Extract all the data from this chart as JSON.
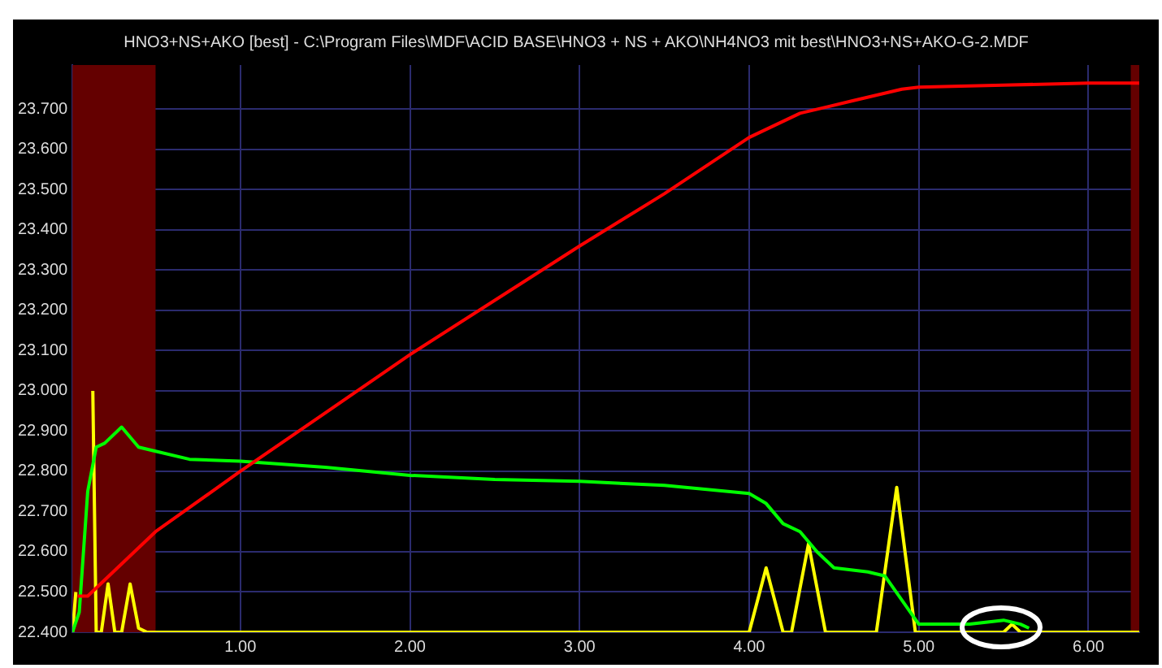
{
  "chart_data": {
    "type": "line",
    "title": "HNO3+NS+AKO [best] - C:\\Program Files\\MDF\\ACID BASE\\HNO3 + NS + AKO\\NH4NO3 mit best\\HNO3+NS+AKO-G-2.MDF",
    "xlim": [
      0.01,
      6.3
    ],
    "ylim": [
      22.4,
      23.81
    ],
    "xticks": [
      {
        "value": 1,
        "label": "1.00"
      },
      {
        "value": 2,
        "label": "2.00"
      },
      {
        "value": 3,
        "label": "3.00"
      },
      {
        "value": 4,
        "label": "4.00"
      },
      {
        "value": 5,
        "label": "5.00"
      },
      {
        "value": 6,
        "label": "6.00"
      }
    ],
    "yticks": [
      {
        "value": 22.4,
        "label": "22.400"
      },
      {
        "value": 22.5,
        "label": "22.500"
      },
      {
        "value": 22.6,
        "label": "22.600"
      },
      {
        "value": 22.7,
        "label": "22.700"
      },
      {
        "value": 22.8,
        "label": "22.800"
      },
      {
        "value": 22.9,
        "label": "22.900"
      },
      {
        "value": 23.0,
        "label": "23.000"
      },
      {
        "value": 23.1,
        "label": "23.100"
      },
      {
        "value": 23.2,
        "label": "23.200"
      },
      {
        "value": 23.3,
        "label": "23.300"
      },
      {
        "value": 23.4,
        "label": "23.400"
      },
      {
        "value": 23.5,
        "label": "23.500"
      },
      {
        "value": 23.6,
        "label": "23.600"
      },
      {
        "value": 23.7,
        "label": "23.700"
      }
    ],
    "grid": true,
    "legend": false,
    "marker": "none",
    "line_style": "solid",
    "bands": [
      {
        "axis": "x",
        "from": 0.01,
        "to": 0.5,
        "color": "#640000"
      },
      {
        "axis": "x",
        "from": 6.25,
        "to": 6.3,
        "color": "#640000"
      }
    ],
    "series": [
      {
        "color": "#ff0000",
        "x": [
          0.04,
          0.1,
          0.5,
          1,
          2,
          3,
          3.5,
          4,
          4.3,
          4.6,
          4.9,
          5,
          5.5,
          6,
          6.3
        ],
        "values": [
          22.49,
          22.49,
          22.65,
          22.8,
          23.09,
          23.36,
          23.49,
          23.63,
          23.69,
          23.72,
          23.75,
          23.755,
          23.76,
          23.765,
          23.765
        ]
      },
      {
        "color": "#00ff00",
        "x": [
          0.01,
          0.05,
          0.1,
          0.15,
          0.2,
          0.3,
          0.4,
          0.5,
          0.7,
          1,
          1.5,
          2,
          2.5,
          3,
          3.5,
          4,
          4.1,
          4.2,
          4.3,
          4.4,
          4.5,
          4.7,
          4.8,
          4.9,
          5,
          5.3,
          5.5,
          5.6,
          5.65
        ],
        "values": [
          22.4,
          22.45,
          22.75,
          22.86,
          22.87,
          22.91,
          22.86,
          22.85,
          22.83,
          22.825,
          22.81,
          22.79,
          22.78,
          22.775,
          22.765,
          22.745,
          22.72,
          22.67,
          22.65,
          22.6,
          22.56,
          22.55,
          22.54,
          22.48,
          22.42,
          22.42,
          22.43,
          22.42,
          22.41
        ]
      },
      {
        "color": "#ffff00",
        "x": [
          0.01,
          0.03,
          0.06,
          0.08,
          0.1,
          0.11,
          0.13,
          0.15,
          0.18,
          0.22,
          0.26,
          0.3,
          0.35,
          0.4,
          0.45,
          4,
          4.1,
          4.2,
          4.25,
          4.35,
          4.45,
          4.75,
          4.87,
          4.98,
          5.5,
          5.55,
          5.6,
          6.3
        ],
        "values": [
          22.4,
          22.5,
          null,
          null,
          null,
          null,
          23.0,
          22.4,
          22.4,
          22.52,
          22.4,
          22.4,
          22.52,
          22.41,
          22.4,
          22.4,
          22.56,
          22.4,
          22.4,
          22.62,
          22.4,
          22.4,
          22.76,
          22.4,
          22.4,
          22.42,
          22.4,
          22.4
        ]
      }
    ]
  }
}
